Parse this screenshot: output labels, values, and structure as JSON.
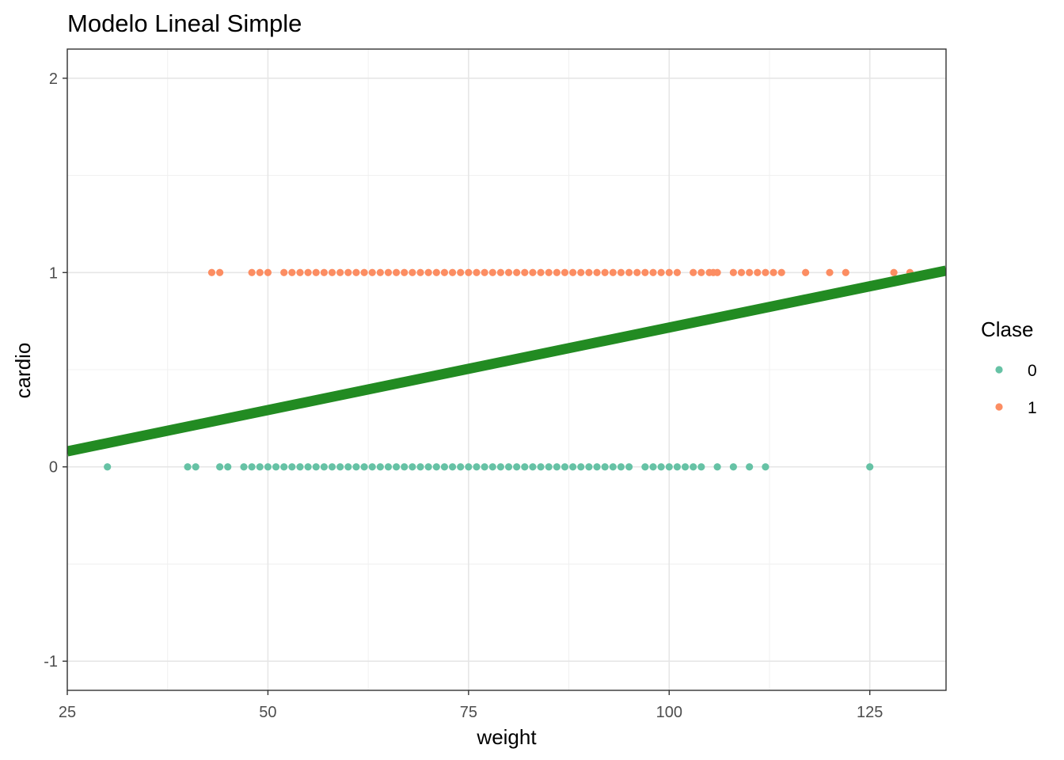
{
  "chart_data": {
    "type": "scatter",
    "title": "Modelo Lineal Simple",
    "xlabel": "weight",
    "ylabel": "cardio",
    "xlim": [
      25,
      134.5
    ],
    "ylim": [
      -1.15,
      2.15
    ],
    "x_ticks": [
      25,
      50,
      75,
      100,
      125
    ],
    "x_tick_labels": [
      "25",
      "50",
      "75",
      "100",
      "125"
    ],
    "y_ticks": [
      -1,
      0,
      1,
      2
    ],
    "y_tick_labels": [
      "-1",
      "0",
      "1",
      "2"
    ],
    "grid": true,
    "legend": {
      "title": "Clase",
      "placement": "right",
      "entries": [
        {
          "label": "0",
          "color": "#66c2a5"
        },
        {
          "label": "1",
          "color": "#fc8d62"
        }
      ]
    },
    "series": [
      {
        "name": "0",
        "color": "#66c2a5",
        "x": [
          30,
          40,
          41,
          44,
          45,
          47,
          48,
          49,
          50,
          51,
          52,
          53,
          54,
          55,
          56,
          57,
          58,
          59,
          60,
          61,
          62,
          63,
          64,
          65,
          66,
          67,
          68,
          69,
          70,
          71,
          72,
          73,
          74,
          75,
          76,
          77,
          78,
          79,
          80,
          81,
          82,
          83,
          84,
          85,
          86,
          87,
          88,
          89,
          90,
          91,
          92,
          93,
          94,
          95,
          97,
          98,
          99,
          100,
          101,
          102,
          103,
          104,
          106,
          108,
          110,
          112,
          125
        ],
        "y": [
          0,
          0,
          0,
          0,
          0,
          0,
          0,
          0,
          0,
          0,
          0,
          0,
          0,
          0,
          0,
          0,
          0,
          0,
          0,
          0,
          0,
          0,
          0,
          0,
          0,
          0,
          0,
          0,
          0,
          0,
          0,
          0,
          0,
          0,
          0,
          0,
          0,
          0,
          0,
          0,
          0,
          0,
          0,
          0,
          0,
          0,
          0,
          0,
          0,
          0,
          0,
          0,
          0,
          0,
          0,
          0,
          0,
          0,
          0,
          0,
          0,
          0,
          0,
          0,
          0,
          0,
          0
        ]
      },
      {
        "name": "1",
        "color": "#fc8d62",
        "x": [
          43,
          44,
          48,
          49,
          50,
          52,
          53,
          54,
          55,
          56,
          57,
          58,
          59,
          60,
          61,
          62,
          63,
          64,
          65,
          66,
          67,
          68,
          69,
          70,
          71,
          72,
          73,
          74,
          75,
          76,
          77,
          78,
          79,
          80,
          81,
          82,
          83,
          84,
          85,
          86,
          87,
          88,
          89,
          90,
          91,
          92,
          93,
          94,
          95,
          96,
          97,
          98,
          99,
          100,
          101,
          103,
          104,
          105,
          105.5,
          106,
          108,
          109,
          110,
          111,
          112,
          113,
          114,
          117,
          120,
          122,
          128,
          130
        ],
        "y": [
          1,
          1,
          1,
          1,
          1,
          1,
          1,
          1,
          1,
          1,
          1,
          1,
          1,
          1,
          1,
          1,
          1,
          1,
          1,
          1,
          1,
          1,
          1,
          1,
          1,
          1,
          1,
          1,
          1,
          1,
          1,
          1,
          1,
          1,
          1,
          1,
          1,
          1,
          1,
          1,
          1,
          1,
          1,
          1,
          1,
          1,
          1,
          1,
          1,
          1,
          1,
          1,
          1,
          1,
          1,
          1,
          1,
          1,
          1,
          1,
          1,
          1,
          1,
          1,
          1,
          1,
          1,
          1,
          1,
          1,
          1,
          1
        ]
      }
    ],
    "fit_line": {
      "color": "#228b22",
      "x": [
        25,
        134.5
      ],
      "y": [
        0.08,
        1.01
      ]
    }
  }
}
